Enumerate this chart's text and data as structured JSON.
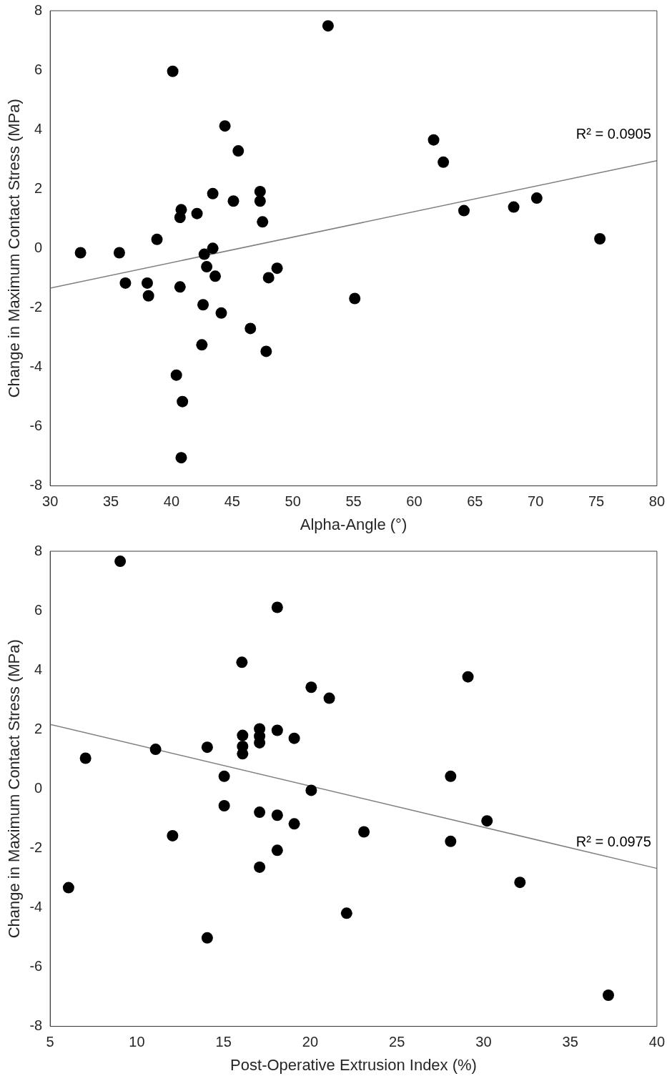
{
  "chart_data": [
    {
      "type": "scatter",
      "xlabel": "Alpha-Angle (°)",
      "ylabel": "Change in Maximum Contact Stress (MPa)",
      "xlim": [
        30,
        80
      ],
      "ylim": [
        -8,
        8
      ],
      "xticks": [
        30,
        35,
        40,
        45,
        50,
        55,
        60,
        65,
        70,
        75,
        80
      ],
      "yticks": [
        -8,
        -6,
        -4,
        -2,
        0,
        2,
        4,
        6,
        8
      ],
      "grid": false,
      "legend": false,
      "marker": "circle",
      "annotations": [
        "R² = 0.0905"
      ],
      "series": [
        {
          "color": "#000000",
          "x": [
            32.5,
            35.7,
            36.2,
            38.8,
            38.0,
            38.1,
            40.1,
            40.4,
            40.7,
            40.8,
            40.7,
            40.9,
            40.8,
            42.1,
            42.7,
            42.6,
            42.5,
            42.9,
            43.4,
            43.4,
            43.6,
            44.1,
            44.4,
            45.1,
            45.5,
            46.5,
            47.3,
            47.3,
            47.5,
            48.0,
            47.8,
            48.7,
            52.9,
            55.1,
            61.6,
            62.4,
            64.1,
            68.2,
            70.1,
            75.3
          ],
          "values": [
            -0.15,
            -0.15,
            -1.17,
            0.3,
            -1.17,
            -1.6,
            5.96,
            -4.27,
            1.04,
            1.3,
            -1.3,
            -5.16,
            -7.05,
            1.17,
            -0.2,
            -1.9,
            -3.25,
            -0.62,
            0.0,
            1.84,
            -0.94,
            -2.18,
            4.12,
            1.59,
            3.28,
            -2.7,
            1.91,
            1.59,
            0.89,
            -0.99,
            -3.47,
            -0.67,
            7.49,
            -1.69,
            3.65,
            2.9,
            1.27,
            1.39,
            1.69,
            0.32
          ]
        },
        {
          "type": "line",
          "marker": "none",
          "color": "#808080",
          "x": [
            30,
            80
          ],
          "values": [
            -1.34,
            2.95
          ]
        }
      ]
    },
    {
      "type": "scatter",
      "xlabel": "Post-Operative Extrusion Index (%)",
      "ylabel": "Change in Maximum Contact Stress (MPa)",
      "xlim": [
        5,
        40
      ],
      "ylim": [
        -8,
        8
      ],
      "xticks": [
        5,
        10,
        15,
        20,
        25,
        30,
        35,
        40
      ],
      "yticks": [
        -8,
        -6,
        -4,
        -2,
        0,
        2,
        4,
        6,
        8
      ],
      "grid": false,
      "legend": false,
      "marker": "circle",
      "annotations": [
        "R² = 0.0975"
      ],
      "series": [
        {
          "color": "#000000",
          "x": [
            6.06,
            7.04,
            9.04,
            11.08,
            12.06,
            14.06,
            14.06,
            15.04,
            15.04,
            16.06,
            16.1,
            16.1,
            16.1,
            17.08,
            17.08,
            17.08,
            17.08,
            17.08,
            18.1,
            18.1,
            18.1,
            18.1,
            19.08,
            19.08,
            20.06,
            20.06,
            21.1,
            22.1,
            23.1,
            28.1,
            28.1,
            29.1,
            30.2,
            32.1,
            37.2
          ],
          "values": [
            -3.33,
            1.03,
            7.66,
            1.33,
            -1.58,
            1.4,
            -5.02,
            0.42,
            -0.57,
            4.26,
            1.8,
            1.43,
            1.18,
            2.02,
            1.77,
            1.55,
            -0.79,
            -2.64,
            6.11,
            1.97,
            -0.89,
            -2.07,
            1.7,
            -1.18,
            3.42,
            -0.05,
            3.05,
            -4.19,
            -1.45,
            0.42,
            -1.77,
            3.77,
            -1.08,
            -3.15,
            -6.95
          ]
        },
        {
          "type": "line",
          "marker": "none",
          "color": "#808080",
          "x": [
            5,
            40
          ],
          "values": [
            2.17,
            -2.68
          ]
        }
      ]
    }
  ]
}
